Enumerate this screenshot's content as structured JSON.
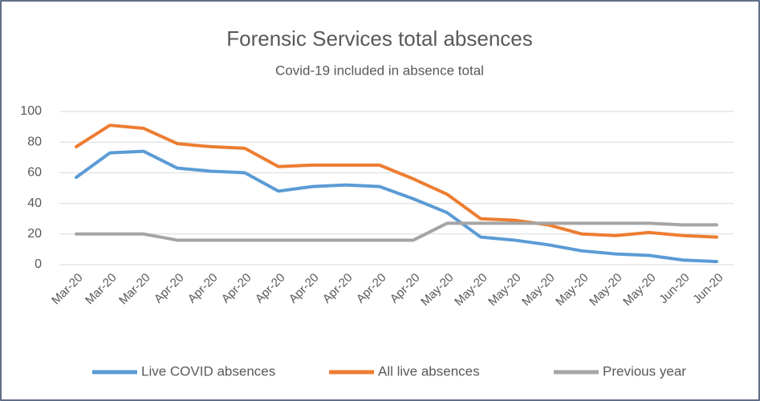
{
  "chart_data": {
    "type": "line",
    "title": "Forensic Services total absences",
    "subtitle": "Covid-19 included in absence total",
    "categories": [
      "Mar-20",
      "Mar-20",
      "Mar-20",
      "Apr-20",
      "Apr-20",
      "Apr-20",
      "Apr-20",
      "Apr-20",
      "Apr-20",
      "Apr-20",
      "Apr-20",
      "May-20",
      "May-20",
      "May-20",
      "May-20",
      "May-20",
      "May-20",
      "May-20",
      "Jun-20",
      "Jun-20"
    ],
    "series": [
      {
        "name": "Live COVID absences",
        "color": "#5b9bd5",
        "values": [
          57,
          73,
          74,
          63,
          61,
          60,
          48,
          51,
          52,
          51,
          43,
          34,
          18,
          16,
          13,
          9,
          7,
          6,
          3,
          2
        ]
      },
      {
        "name": "All live absences",
        "color": "#ed7d31",
        "values": [
          77,
          91,
          89,
          79,
          77,
          76,
          64,
          65,
          65,
          65,
          56,
          46,
          30,
          29,
          26,
          20,
          19,
          21,
          19,
          18
        ]
      },
      {
        "name": "Previous year",
        "color": "#a5a5a5",
        "values": [
          20,
          20,
          20,
          16,
          16,
          16,
          16,
          16,
          16,
          16,
          16,
          27,
          27,
          27,
          27,
          27,
          27,
          27,
          26,
          26
        ]
      }
    ],
    "ylim": [
      0,
      100
    ],
    "yticks": [
      0,
      20,
      40,
      60,
      80,
      100
    ],
    "grid": true,
    "legend": "bottom"
  }
}
